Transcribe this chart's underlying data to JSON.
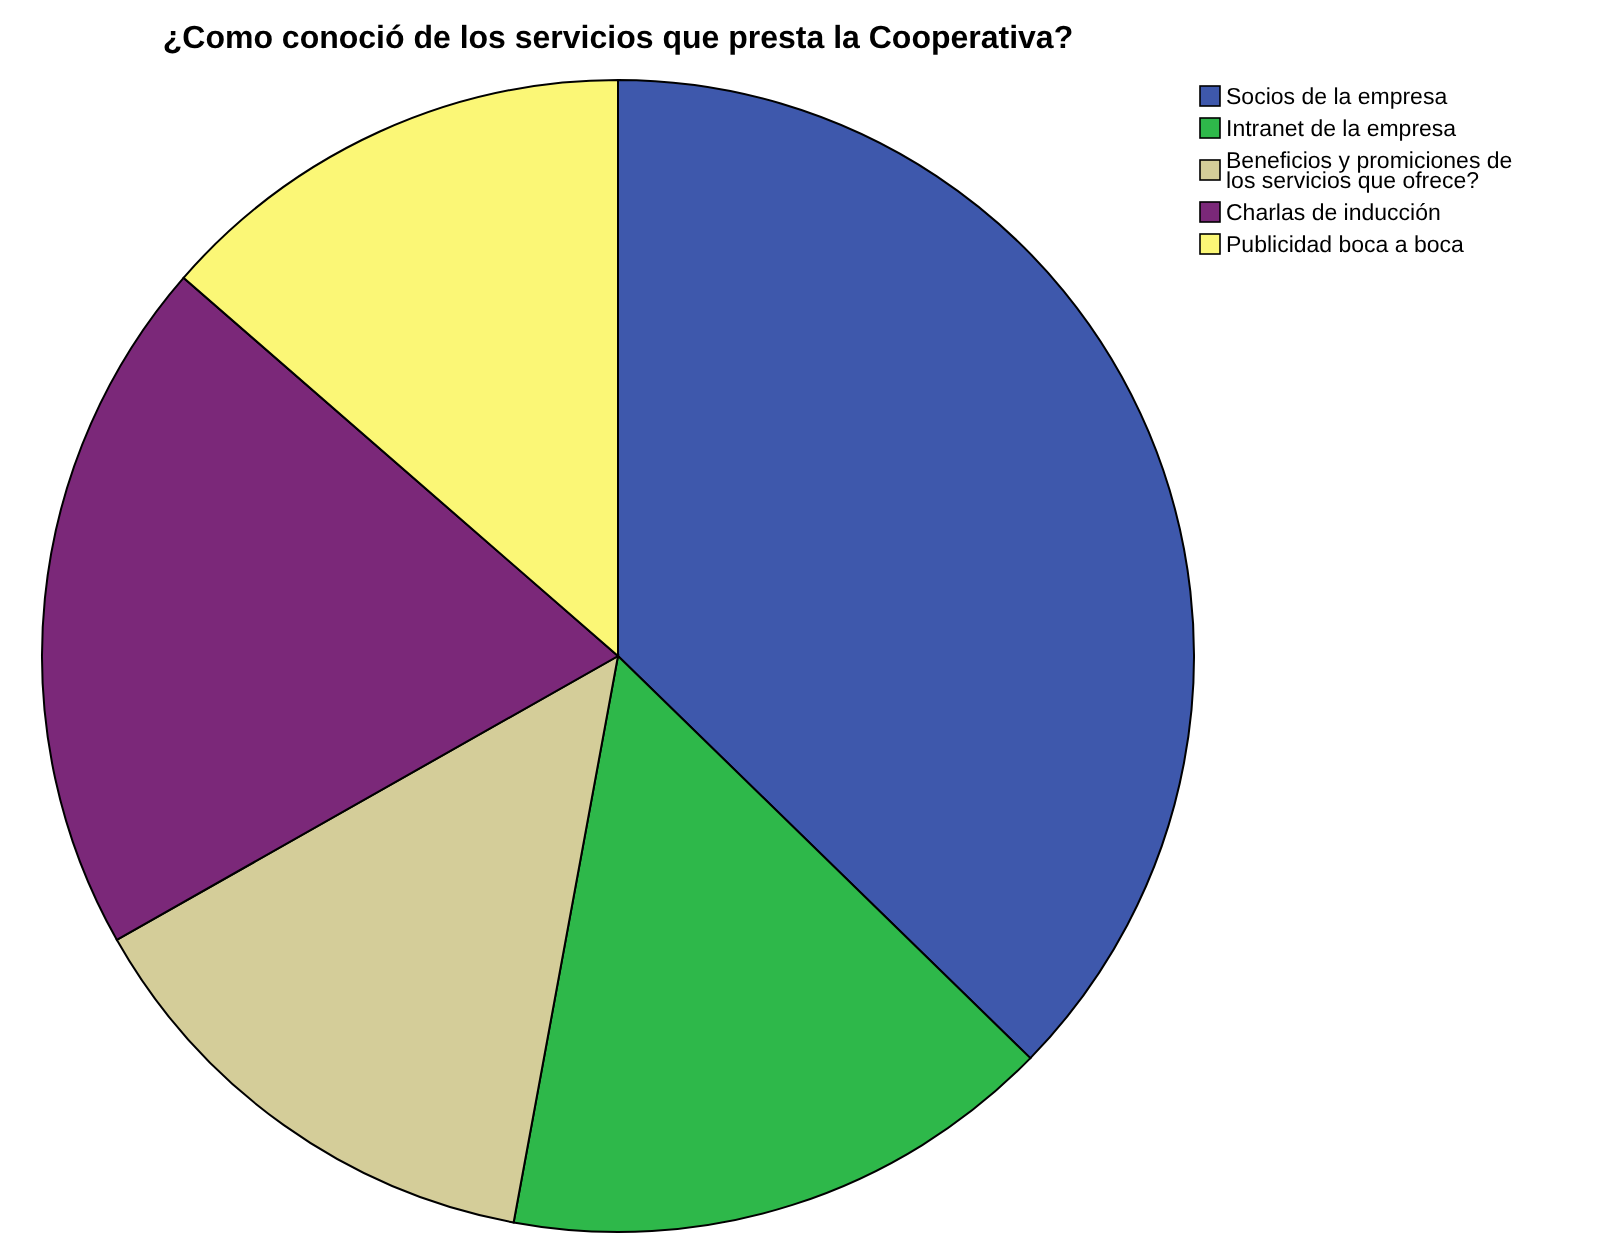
{
  "chart_data": {
    "type": "pie",
    "title": "¿Como conoció de los servicios que presta la Cooperativa?",
    "categories": [
      "Socios de la empresa",
      "Intranet de la empresa",
      "Beneficios y promiciones de los servicios que ofrece?",
      "Charlas de inducción",
      "Publicidad boca a boca"
    ],
    "values": [
      37.3,
      15.6,
      13.9,
      19.6,
      13.6
    ],
    "colors": [
      "#3e58ac",
      "#2eb84a",
      "#d4cd99",
      "#7b2879",
      "#fbf776"
    ],
    "legend": "top right"
  }
}
